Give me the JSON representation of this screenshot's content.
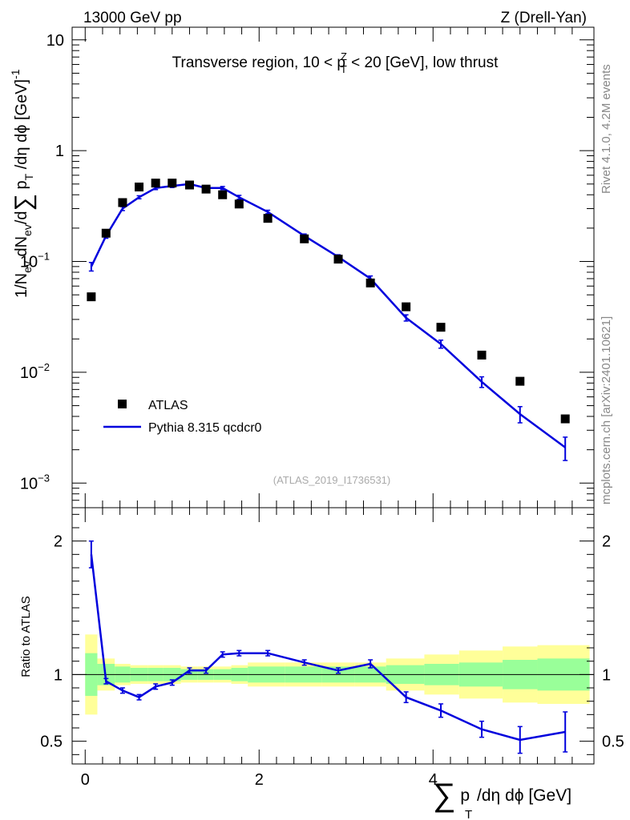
{
  "header": {
    "beam": "13000 GeV pp",
    "process": "Z (Drell-Yan)"
  },
  "side_labels": {
    "rivet": "Rivet 4.1.0,  4.2M events",
    "mcplots": "mcplots.cern.ch [arXiv:2401.10621]"
  },
  "colors": {
    "mc": "#0000dd",
    "data": "#000000",
    "band_inner": "#99ff99",
    "band_outer": "#ffff99",
    "watermark": "#aaaaaa"
  },
  "chart_data": [
    {
      "type": "scatter",
      "name": "main",
      "title": "Transverse region, 10 < p_T^Z < 20 [GeV], low thrust",
      "watermark": "(ATLAS_2019_I1736531)",
      "ylabel": "1/N_ev dN_ev/d∑p_T/dη dφ [GeV]^-1",
      "yscale": "log",
      "ylim": [
        0.0006,
        13
      ],
      "xlim": [
        -0.15,
        5.85
      ],
      "y_ticks": [
        {
          "value": 10,
          "label": "10"
        },
        {
          "value": 1,
          "label": "1"
        },
        {
          "value": 0.1,
          "label": "10",
          "exp": "−1"
        },
        {
          "value": 0.01,
          "label": "10",
          "exp": "−2"
        },
        {
          "value": 0.001,
          "label": "10",
          "exp": "−3"
        }
      ],
      "legend": {
        "position": "bottom-left",
        "entries": [
          "ATLAS",
          "Pythia 8.315 qcdcr0"
        ]
      },
      "series": [
        {
          "name": "ATLAS",
          "style": "markers",
          "x": [
            0.07,
            0.24,
            0.43,
            0.62,
            0.81,
            1.0,
            1.2,
            1.39,
            1.58,
            1.77,
            2.1,
            2.52,
            2.91,
            3.28,
            3.69,
            4.09,
            4.56,
            5.0,
            5.52
          ],
          "y": [
            0.048,
            0.18,
            0.34,
            0.47,
            0.51,
            0.51,
            0.49,
            0.45,
            0.4,
            0.33,
            0.245,
            0.16,
            0.105,
            0.064,
            0.039,
            0.0255,
            0.0143,
            0.0083,
            0.0038
          ]
        },
        {
          "name": "Pythia 8.315 qcdcr0",
          "style": "line",
          "x": [
            0.07,
            0.24,
            0.43,
            0.62,
            0.81,
            1.0,
            1.2,
            1.39,
            1.58,
            1.77,
            2.1,
            2.52,
            2.91,
            3.28,
            3.69,
            4.09,
            4.56,
            5.0,
            5.52
          ],
          "y": [
            0.09,
            0.17,
            0.3,
            0.38,
            0.46,
            0.48,
            0.5,
            0.46,
            0.46,
            0.38,
            0.28,
            0.17,
            0.11,
            0.07,
            0.031,
            0.018,
            0.0082,
            0.0042,
            0.0021
          ],
          "yerr": [
            0.008,
            0.008,
            0.012,
            0.012,
            0.015,
            0.015,
            0.015,
            0.015,
            0.015,
            0.015,
            0.01,
            0.007,
            0.005,
            0.004,
            0.002,
            0.0015,
            0.0009,
            0.0007,
            0.0005
          ]
        }
      ]
    },
    {
      "type": "line",
      "name": "ratio",
      "ylabel": "Ratio to ATLAS",
      "xlabel": "∑p_T/dη dφ [GeV]",
      "ylim": [
        0.33,
        2.25
      ],
      "xlim": [
        -0.15,
        5.85
      ],
      "reference": 1.0,
      "y_ticks": [
        {
          "value": 2,
          "label": "2"
        },
        {
          "value": 1,
          "label": "1"
        },
        {
          "value": 0.5,
          "label": "0.5"
        }
      ],
      "x_ticks": [
        {
          "value": 0,
          "label": "0"
        },
        {
          "value": 2,
          "label": "2"
        },
        {
          "value": 4,
          "label": "4"
        }
      ],
      "bands": {
        "edges": [
          0,
          0.14,
          0.34,
          0.52,
          0.72,
          0.9,
          1.1,
          1.29,
          1.48,
          1.68,
          1.87,
          2.3,
          2.72,
          3.1,
          3.46,
          3.9,
          4.3,
          4.8,
          5.2,
          5.8
        ],
        "inner_half": [
          0.16,
          0.08,
          0.06,
          0.05,
          0.05,
          0.05,
          0.04,
          0.04,
          0.04,
          0.05,
          0.06,
          0.06,
          0.06,
          0.06,
          0.07,
          0.08,
          0.09,
          0.11,
          0.12
        ],
        "outer_half": [
          0.3,
          0.12,
          0.08,
          0.07,
          0.07,
          0.07,
          0.06,
          0.06,
          0.06,
          0.07,
          0.09,
          0.09,
          0.09,
          0.09,
          0.12,
          0.15,
          0.18,
          0.21,
          0.22
        ]
      },
      "series": [
        {
          "name": "Pythia 8.315 qcdcr0",
          "x": [
            0.07,
            0.24,
            0.43,
            0.62,
            0.81,
            1.0,
            1.2,
            1.39,
            1.58,
            1.77,
            2.1,
            2.52,
            2.91,
            3.28,
            3.69,
            4.09,
            4.56,
            5.0,
            5.52
          ],
          "y": [
            1.9,
            0.95,
            0.88,
            0.83,
            0.91,
            0.94,
            1.03,
            1.03,
            1.15,
            1.16,
            1.16,
            1.09,
            1.03,
            1.08,
            0.83,
            0.73,
            0.59,
            0.51,
            0.57
          ],
          "yerr": [
            0.1,
            0.02,
            0.02,
            0.02,
            0.02,
            0.02,
            0.02,
            0.02,
            0.02,
            0.02,
            0.02,
            0.02,
            0.02,
            0.03,
            0.04,
            0.05,
            0.06,
            0.1,
            0.15
          ]
        }
      ]
    }
  ]
}
